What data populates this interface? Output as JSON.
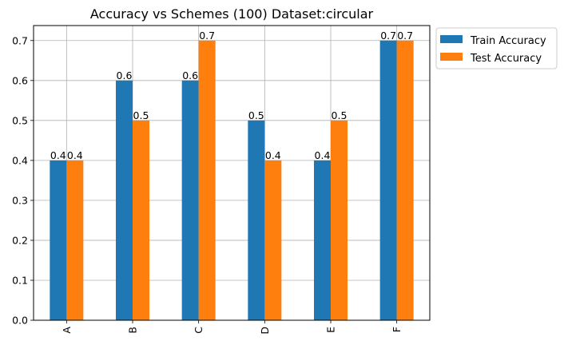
{
  "chart_data": {
    "type": "bar",
    "title": "Accuracy vs Schemes (100) Dataset:circular",
    "xlabel": "",
    "ylabel": "",
    "categories": [
      "A",
      "B",
      "C",
      "D",
      "E",
      "F"
    ],
    "series": [
      {
        "name": "Train Accuracy",
        "values": [
          0.4,
          0.6,
          0.6,
          0.5,
          0.4,
          0.7
        ],
        "color": "#1f77b4"
      },
      {
        "name": "Test Accuracy",
        "values": [
          0.4,
          0.5,
          0.7,
          0.4,
          0.5,
          0.7
        ],
        "color": "#ff7f0e"
      }
    ],
    "ylim": [
      0,
      0.7375
    ],
    "yticks": [
      0.0,
      0.1,
      0.2,
      0.3,
      0.4,
      0.5,
      0.6,
      0.7
    ],
    "ytick_labels": [
      "0.0",
      "0.1",
      "0.2",
      "0.3",
      "0.4",
      "0.5",
      "0.6",
      "0.7"
    ],
    "data_labels": [
      [
        "0.4",
        "0.6",
        "0.6",
        "0.5",
        "0.4",
        "0.7"
      ],
      [
        "0.4",
        "0.5",
        "0.7",
        "0.4",
        "0.5",
        "0.7"
      ]
    ],
    "grid": true,
    "legend_position": "outside-top-right"
  }
}
